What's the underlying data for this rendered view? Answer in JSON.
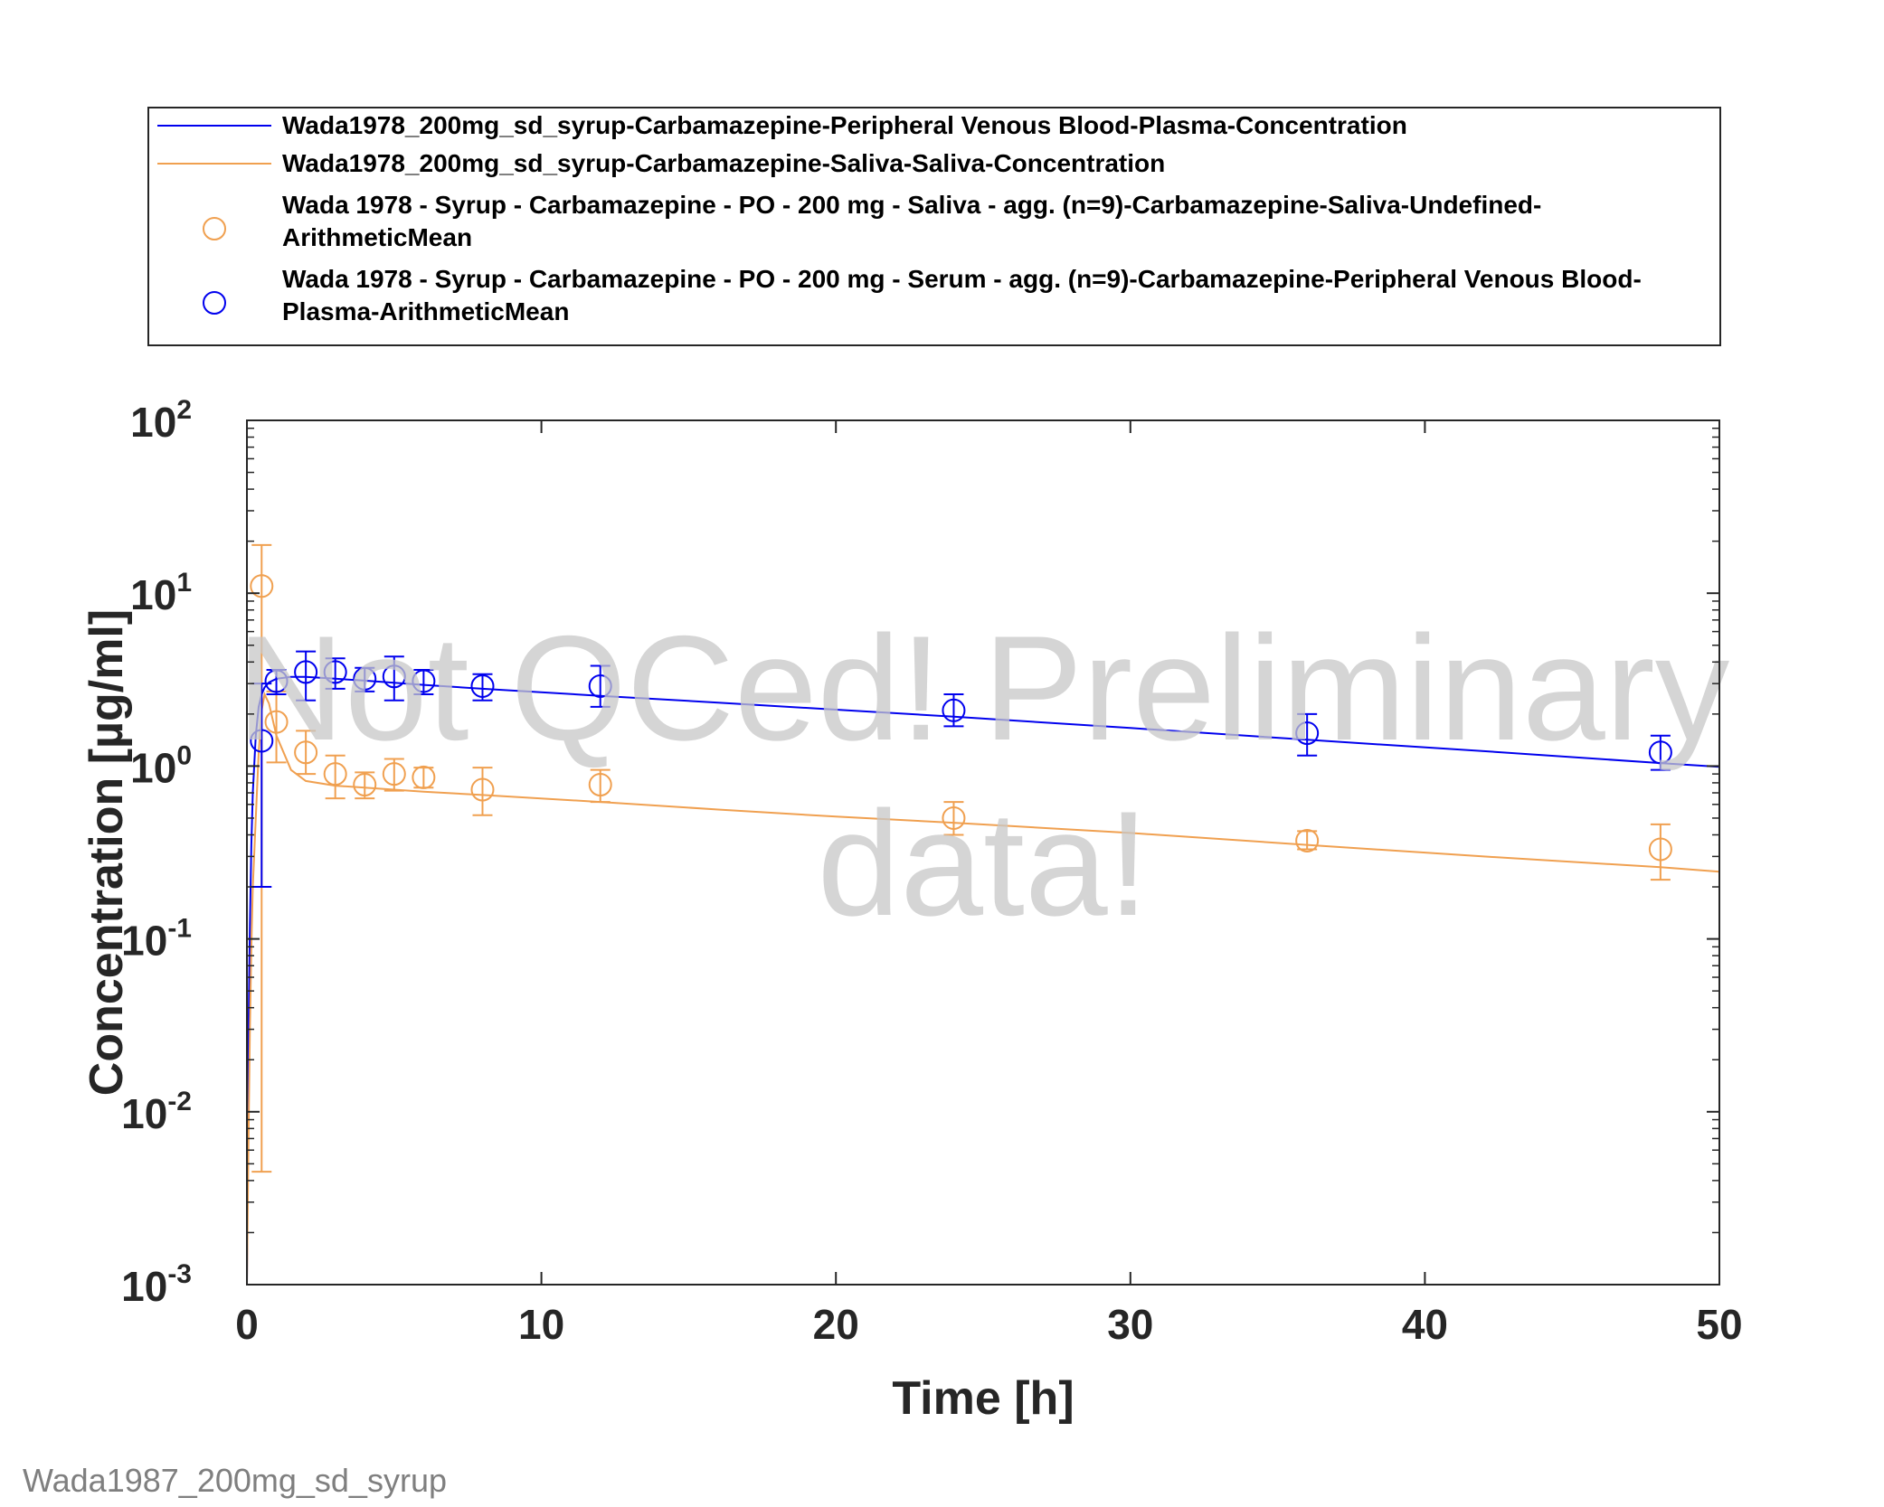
{
  "footer_label": "Wada1987_200mg_sd_syrup",
  "watermark": {
    "line1": "Not QCed! Preliminary",
    "line2": "data!"
  },
  "colors": {
    "blue": "#0000ee",
    "orange": "#f0a050",
    "axis": "#262626"
  },
  "legend": [
    {
      "kind": "line",
      "color": "blue",
      "lines": [
        "Wada1978_200mg_sd_syrup-Carbamazepine-Peripheral Venous Blood-Plasma-Concentration"
      ]
    },
    {
      "kind": "line",
      "color": "orange",
      "lines": [
        "Wada1978_200mg_sd_syrup-Carbamazepine-Saliva-Saliva-Concentration"
      ]
    },
    {
      "kind": "marker",
      "color": "orange",
      "lines": [
        "Wada 1978 - Syrup - Carbamazepine - PO - 200 mg - Saliva - agg. (n=9)-Carbamazepine-Saliva-Undefined-",
        "ArithmeticMean"
      ]
    },
    {
      "kind": "marker",
      "color": "blue",
      "lines": [
        "Wada 1978 - Syrup - Carbamazepine - PO - 200 mg - Serum - agg. (n=9)-Carbamazepine-Peripheral Venous Blood-",
        "Plasma-ArithmeticMean"
      ]
    }
  ],
  "chart_data": {
    "type": "line",
    "xlabel": "Time [h]",
    "ylabel": "Concentration [µg/ml]",
    "xlim": [
      0,
      50
    ],
    "ylim": [
      0.001,
      100
    ],
    "yscale": "log",
    "grid": false,
    "legend_position": "above plot",
    "xticks": [
      0,
      10,
      20,
      30,
      40,
      50
    ],
    "yticks": [
      {
        "value": 0.001,
        "base": "10",
        "exp": "-3"
      },
      {
        "value": 0.01,
        "base": "10",
        "exp": "-2"
      },
      {
        "value": 0.1,
        "base": "10",
        "exp": "-1"
      },
      {
        "value": 1,
        "base": "10",
        "exp": "0"
      },
      {
        "value": 10,
        "base": "10",
        "exp": "1"
      },
      {
        "value": 100,
        "base": "10",
        "exp": "2"
      }
    ],
    "series": [
      {
        "name": "Wada1978_200mg_sd_syrup-Carbamazepine-Peripheral Venous Blood-Plasma-Concentration",
        "kind": "line",
        "color": "blue",
        "x": [
          0,
          0.05,
          0.1,
          0.15,
          0.2,
          0.3,
          0.4,
          0.5,
          0.6,
          0.75,
          1,
          1.5,
          2,
          3,
          4,
          6,
          8,
          12,
          16,
          20,
          24,
          30,
          36,
          42,
          48,
          50
        ],
        "y": [
          0.001,
          0.025,
          0.12,
          0.35,
          0.7,
          1.5,
          2.2,
          2.6,
          2.85,
          3.05,
          3.2,
          3.28,
          3.28,
          3.2,
          3.12,
          2.95,
          2.8,
          2.55,
          2.33,
          2.12,
          1.93,
          1.66,
          1.42,
          1.22,
          1.04,
          0.99
        ]
      },
      {
        "name": "Wada1978_200mg_sd_syrup-Carbamazepine-Saliva-Saliva-Concentration",
        "kind": "line",
        "color": "orange",
        "x": [
          0,
          0.05,
          0.1,
          0.15,
          0.2,
          0.3,
          0.4,
          0.5,
          0.6,
          0.75,
          1,
          1.5,
          2,
          3,
          4,
          6,
          8,
          12,
          16,
          20,
          24,
          30,
          36,
          42,
          48,
          50
        ],
        "y": [
          0.001,
          0.006,
          0.03,
          0.09,
          0.2,
          0.5,
          1.2,
          2.1,
          2.6,
          2.3,
          1.5,
          0.95,
          0.82,
          0.77,
          0.75,
          0.71,
          0.68,
          0.62,
          0.56,
          0.51,
          0.47,
          0.41,
          0.35,
          0.3,
          0.26,
          0.245
        ]
      },
      {
        "name": "Wada 1978 - Syrup - Carbamazepine - PO - 200 mg - Saliva - agg. (n=9)-Carbamazepine-Saliva-Undefined-ArithmeticMean",
        "kind": "marker",
        "color": "orange",
        "x": [
          0.5,
          1,
          2,
          3,
          4,
          5,
          6,
          8,
          12,
          24,
          36,
          48
        ],
        "y": [
          11,
          1.8,
          1.2,
          0.9,
          0.78,
          0.9,
          0.86,
          0.73,
          0.78,
          0.5,
          0.37,
          0.33
        ],
        "err_low": [
          0.0045,
          1.05,
          0.9,
          0.65,
          0.65,
          0.72,
          0.75,
          0.52,
          0.62,
          0.4,
          0.33,
          0.22
        ],
        "err_high": [
          19,
          2.7,
          1.6,
          1.15,
          0.92,
          1.1,
          0.98,
          0.98,
          0.95,
          0.62,
          0.42,
          0.46
        ]
      },
      {
        "name": "Wada 1978 - Syrup - Carbamazepine - PO - 200 mg - Serum - agg. (n=9)-Carbamazepine-Peripheral Venous Blood-Plasma-ArithmeticMean",
        "kind": "marker",
        "color": "blue",
        "x": [
          0.5,
          1,
          2,
          3,
          4,
          5,
          6,
          8,
          12,
          24,
          36,
          48
        ],
        "y": [
          1.4,
          3.1,
          3.5,
          3.5,
          3.2,
          3.3,
          3.1,
          2.9,
          2.9,
          2.1,
          1.55,
          1.2
        ],
        "err_low": [
          0.2,
          2.6,
          2.4,
          2.8,
          2.7,
          2.4,
          2.6,
          2.4,
          2.2,
          1.7,
          1.15,
          0.95
        ],
        "err_high": [
          3.0,
          3.6,
          4.6,
          4.2,
          3.7,
          4.3,
          3.6,
          3.4,
          3.8,
          2.6,
          2.0,
          1.5
        ]
      }
    ]
  }
}
